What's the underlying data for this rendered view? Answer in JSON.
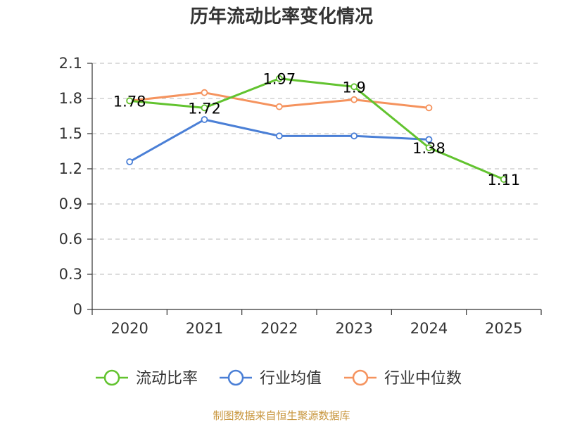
{
  "colors": {
    "current_ratio": "#62c32f",
    "industry_avg": "#4a7fd6",
    "industry_median": "#f5935e",
    "grid": "#c8c8c8",
    "axis": "#333333",
    "source": "#c8963e"
  },
  "chart_data": {
    "type": "line",
    "title": "历年流动比率变化情况",
    "categories": [
      "2020",
      "2021",
      "2022",
      "2023",
      "2024",
      "2025"
    ],
    "y_ticks": [
      "0",
      "0.3",
      "0.6",
      "0.9",
      "1.2",
      "1.5",
      "1.8",
      "2.1"
    ],
    "ylim": [
      0,
      2.1
    ],
    "grid": true,
    "legend_position": "bottom",
    "series": [
      {
        "name": "流动比率",
        "color_key": "current_ratio",
        "values": [
          1.78,
          1.72,
          1.97,
          1.9,
          1.38,
          1.11
        ],
        "labels": [
          "1.78",
          "1.72",
          "1.97",
          "1.9",
          "1.38",
          "1.11"
        ]
      },
      {
        "name": "行业均值",
        "color_key": "industry_avg",
        "values": [
          1.26,
          1.62,
          1.48,
          1.48,
          1.45,
          null
        ],
        "labels": []
      },
      {
        "name": "行业中位数",
        "color_key": "industry_median",
        "values": [
          1.78,
          1.85,
          1.73,
          1.79,
          1.72,
          null
        ],
        "labels": []
      }
    ],
    "source": "制图数据来自恒生聚源数据库"
  }
}
